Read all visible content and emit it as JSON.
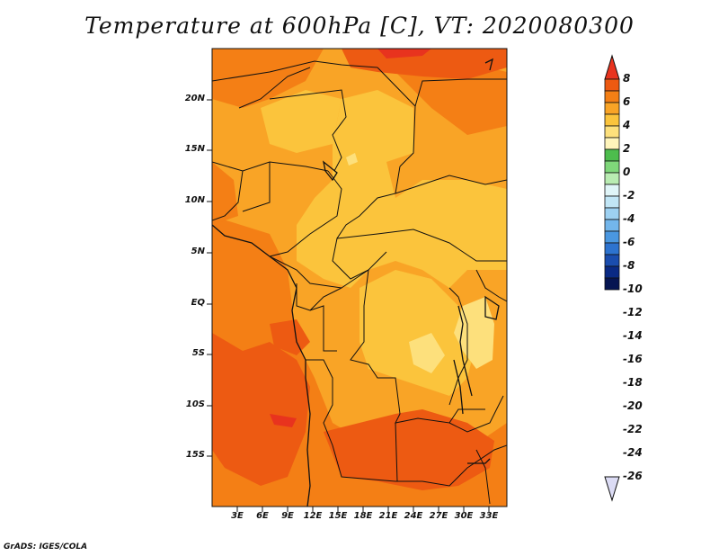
{
  "title": "Temperature at 600hPa [C], VT: 2020080300",
  "credit": "GrADS: IGES/COLA",
  "map": {
    "lat_labels": [
      "20N",
      "15N",
      "10N",
      "5N",
      "EQ",
      "5S",
      "10S",
      "15S"
    ],
    "lon_labels": [
      "3E",
      "6E",
      "9E",
      "12E",
      "15E",
      "18E",
      "21E",
      "24E",
      "27E",
      "30E",
      "33E"
    ]
  },
  "colorbar": {
    "labels": [
      "8",
      "6",
      "4",
      "2",
      "0",
      "-2",
      "-4",
      "-6",
      "-8",
      "-10",
      "-12",
      "-14",
      "-16",
      "-18",
      "-20",
      "-22",
      "-24",
      "-26"
    ],
    "colors": [
      "#e8331e",
      "#ed5a12",
      "#f47f15",
      "#f9a426",
      "#fbc43c",
      "#fde07c",
      "#fff5bb",
      "#4dbd4d",
      "#7fd77a",
      "#b9ecb2",
      "#e0f5f8",
      "#c1e6f6",
      "#9dd1f2",
      "#73b6eb",
      "#4a97e0",
      "#2d73cf",
      "#1a4dae",
      "#0a2a84",
      "#061552",
      "#dcdcf5"
    ]
  },
  "colors": {
    "base": "#f9a426",
    "warm": "#f47f15",
    "hot": "#ed5a12",
    "hotter": "#e8331e",
    "mild": "#fbc43c",
    "cool": "#fde07c"
  }
}
